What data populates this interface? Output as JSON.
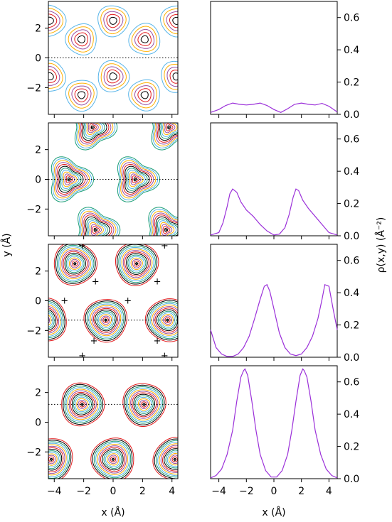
{
  "chart_data": {
    "type": "figure",
    "contour_panels": {
      "xlabel": "x (Å)",
      "ylabel": "y (Å)",
      "xlim": [
        -4.4,
        4.4
      ],
      "ylim": [
        -3.8,
        3.8
      ],
      "xticks": [
        "−4",
        "−2",
        "0",
        "2",
        "4"
      ],
      "yticks": [
        "−2",
        "0",
        "2"
      ],
      "yticks_values": [
        -2,
        0,
        2
      ],
      "xticks_values": [
        -4,
        -2,
        0,
        2,
        4
      ],
      "colors": [
        "#000000",
        "#e41a1c",
        "#984ea3",
        "#ffb000",
        "#56b4e9",
        "#1b9e77"
      ],
      "rows": [
        {
          "cut_y": 0,
          "centers": [
            {
              "x": -4.3,
              "y": 2.5,
              "kind": "ring"
            },
            {
              "x": 0,
              "y": 2.5,
              "kind": "ring"
            },
            {
              "x": 4.3,
              "y": 2.5,
              "kind": "ring"
            },
            {
              "x": -2.15,
              "y": 1.25,
              "kind": "ring"
            },
            {
              "x": 2.15,
              "y": 1.25,
              "kind": "ring"
            },
            {
              "x": -4.3,
              "y": -1.25,
              "kind": "ring"
            },
            {
              "x": 0,
              "y": -1.25,
              "kind": "ring"
            },
            {
              "x": 4.3,
              "y": -1.25,
              "kind": "ring"
            },
            {
              "x": -2.15,
              "y": -2.5,
              "kind": "ring"
            },
            {
              "x": 2.15,
              "y": -2.5,
              "kind": "ring"
            }
          ]
        },
        {
          "cut_y": 0,
          "centers": [
            {
              "x": -3.0,
              "y": 0,
              "kind": "tri"
            },
            {
              "x": 1.5,
              "y": 0,
              "kind": "tri"
            },
            {
              "x": -1.4,
              "y": 3.5,
              "kind": "tri"
            },
            {
              "x": 3.8,
              "y": 3.5,
              "kind": "tri"
            },
            {
              "x": -1.2,
              "y": -3.4,
              "kind": "tri"
            },
            {
              "x": 3.6,
              "y": -3.4,
              "kind": "tri"
            }
          ]
        },
        {
          "cut_y": -1.3,
          "markers": [
            {
              "x": -2.1,
              "y": 3.7
            },
            {
              "x": 3.5,
              "y": 3.7
            },
            {
              "x": -1.2,
              "y": 1.3
            },
            {
              "x": 3.0,
              "y": 1.3
            },
            {
              "x": -3.3,
              "y": 0.0
            },
            {
              "x": 1.0,
              "y": 0.0
            },
            {
              "x": -1.3,
              "y": -2.7
            },
            {
              "x": 3.0,
              "y": -2.7
            },
            {
              "x": -2.1,
              "y": -3.7
            },
            {
              "x": 3.5,
              "y": -3.7
            }
          ],
          "centers": [
            {
              "x": -2.6,
              "y": 2.5,
              "kind": "dense"
            },
            {
              "x": 1.6,
              "y": 2.5,
              "kind": "dense"
            },
            {
              "x": -0.5,
              "y": -1.3,
              "kind": "dense"
            },
            {
              "x": 3.7,
              "y": -1.3,
              "kind": "dense"
            },
            {
              "x": -4.6,
              "y": -1.3,
              "kind": "dense"
            }
          ]
        },
        {
          "cut_y": 1.2,
          "centers": [
            {
              "x": -2.1,
              "y": 1.2,
              "kind": "dense"
            },
            {
              "x": 2.1,
              "y": 1.2,
              "kind": "dense"
            },
            {
              "x": -4.2,
              "y": -2.5,
              "kind": "dense"
            },
            {
              "x": 0.0,
              "y": -2.5,
              "kind": "dense"
            },
            {
              "x": 4.2,
              "y": -2.5,
              "kind": "dense"
            }
          ]
        }
      ]
    },
    "profile_panels": {
      "xlabel": "x (Å)",
      "ylabel": "ρ(x,y) (Å⁻²)",
      "xlim": [
        -4.6,
        4.6
      ],
      "ylim": [
        0,
        0.7
      ],
      "xticks": [
        "−4",
        "−2",
        "0",
        "2",
        "4"
      ],
      "xticks_values": [
        -4,
        -2,
        0,
        2,
        4
      ],
      "yticks": [
        "0.0",
        "0.2",
        "0.4",
        "0.6"
      ],
      "yticks_values": [
        0,
        0.2,
        0.4,
        0.6
      ],
      "line_color": "#9b30d9",
      "series": [
        {
          "x": [
            -4.6,
            -4.0,
            -3.5,
            -3.0,
            -2.5,
            -2.0,
            -1.5,
            -1.0,
            -0.5,
            0.0,
            0.5,
            1.0,
            1.5,
            2.0,
            2.5,
            3.0,
            3.5,
            4.0,
            4.6
          ],
          "y": [
            0.012,
            0.03,
            0.055,
            0.07,
            0.062,
            0.058,
            0.062,
            0.07,
            0.055,
            0.03,
            0.012,
            0.035,
            0.062,
            0.07,
            0.062,
            0.058,
            0.068,
            0.05,
            0.015
          ]
        },
        {
          "x": [
            -4.6,
            -4.0,
            -3.7,
            -3.4,
            -3.2,
            -3.0,
            -2.7,
            -2.4,
            -2.0,
            -1.5,
            -1.0,
            -0.5,
            0.0,
            0.4,
            0.8,
            1.1,
            1.4,
            1.6,
            1.8,
            2.1,
            2.5,
            3.0,
            3.5,
            4.0,
            4.6
          ],
          "y": [
            0.005,
            0.02,
            0.08,
            0.18,
            0.26,
            0.29,
            0.27,
            0.21,
            0.16,
            0.12,
            0.07,
            0.03,
            0.005,
            0.01,
            0.05,
            0.13,
            0.24,
            0.29,
            0.28,
            0.22,
            0.17,
            0.12,
            0.07,
            0.02,
            0.005
          ]
        },
        {
          "x": [
            -4.6,
            -4.2,
            -3.8,
            -3.4,
            -3.0,
            -2.6,
            -2.2,
            -1.8,
            -1.4,
            -1.0,
            -0.7,
            -0.5,
            -0.3,
            0.0,
            0.4,
            0.8,
            1.2,
            1.6,
            2.0,
            2.4,
            2.8,
            3.2,
            3.5,
            3.7,
            4.0,
            4.3,
            4.6
          ],
          "y": [
            0.17,
            0.06,
            0.02,
            0.005,
            0.005,
            0.02,
            0.06,
            0.13,
            0.24,
            0.36,
            0.44,
            0.45,
            0.41,
            0.3,
            0.15,
            0.06,
            0.02,
            0.01,
            0.02,
            0.06,
            0.13,
            0.24,
            0.36,
            0.45,
            0.44,
            0.3,
            0.17
          ]
        },
        {
          "x": [
            -4.6,
            -4.2,
            -3.8,
            -3.4,
            -3.0,
            -2.7,
            -2.4,
            -2.2,
            -2.1,
            -1.9,
            -1.6,
            -1.3,
            -1.0,
            -0.6,
            -0.2,
            0.2,
            0.6,
            1.0,
            1.3,
            1.6,
            1.9,
            2.1,
            2.2,
            2.4,
            2.7,
            3.0,
            3.4,
            3.8,
            4.2,
            4.6
          ],
          "y": [
            0.005,
            0.02,
            0.06,
            0.15,
            0.3,
            0.48,
            0.63,
            0.67,
            0.68,
            0.64,
            0.48,
            0.3,
            0.15,
            0.05,
            0.01,
            0.01,
            0.05,
            0.15,
            0.3,
            0.48,
            0.64,
            0.68,
            0.67,
            0.63,
            0.48,
            0.3,
            0.15,
            0.06,
            0.02,
            0.005
          ]
        }
      ]
    }
  }
}
